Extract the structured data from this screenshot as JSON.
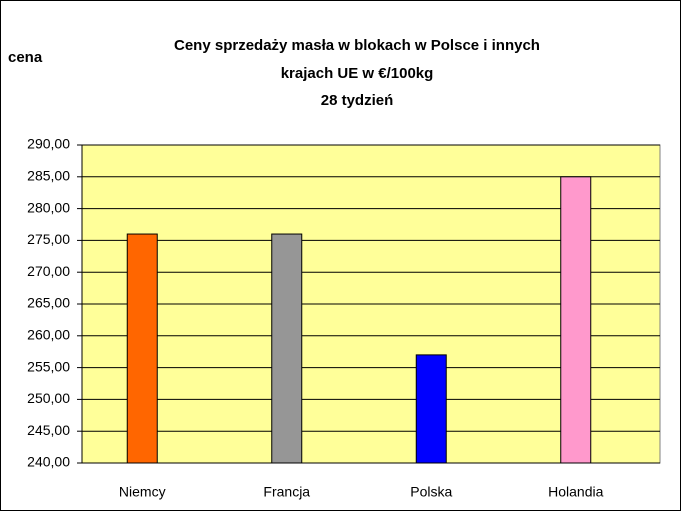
{
  "chart_data": {
    "type": "bar",
    "title": [
      "Ceny sprzedaży masła w blokach w Polsce i  innych",
      "krajach UE w €/100kg",
      "28 tydzień"
    ],
    "y_label": "cena",
    "categories": [
      "Niemcy",
      "Francja",
      "Polska",
      "Holandia"
    ],
    "values": [
      276,
      276,
      257,
      285
    ],
    "colors": [
      "#ff6600",
      "#969696",
      "#0000ff",
      "#ff99cc"
    ],
    "ylim": [
      240,
      290
    ],
    "yticks": [
      {
        "value": 240,
        "label": "240,00"
      },
      {
        "value": 245,
        "label": "245,00"
      },
      {
        "value": 250,
        "label": "250,00"
      },
      {
        "value": 255,
        "label": "255,00"
      },
      {
        "value": 260,
        "label": "260,00"
      },
      {
        "value": 265,
        "label": "265,00"
      },
      {
        "value": 270,
        "label": "270,00"
      },
      {
        "value": 275,
        "label": "275,00"
      },
      {
        "value": 280,
        "label": "280,00"
      },
      {
        "value": 285,
        "label": "285,00"
      },
      {
        "value": 290,
        "label": "290,00"
      }
    ],
    "grid": true
  }
}
